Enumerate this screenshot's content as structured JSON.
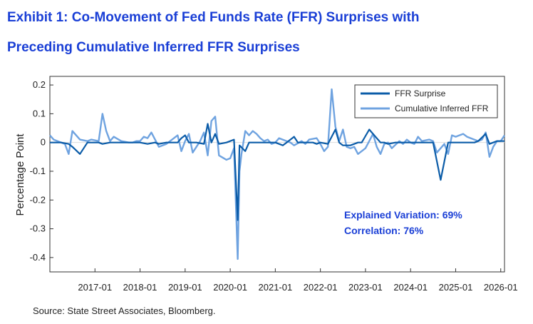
{
  "title_line1": "Exhibit 1: Co-Movement of Fed Funds Rate (FFR) Surprises with",
  "title_line2": "Preceding Cumulative Inferred FFR Surprises",
  "source": "Source: State Street Associates, Bloomberg.",
  "annotation": {
    "line1": "Explained Variation: 69%",
    "line2": "Correlation: 76%",
    "color": "#1a3fd6"
  },
  "chart_data": {
    "type": "line",
    "xlabel": "",
    "ylabel": "Percentage Point",
    "ylim": [
      -0.45,
      0.23
    ],
    "xlim": [
      "2016-01",
      "2026-02"
    ],
    "yticks": [
      "0.2",
      "0.1",
      "0",
      "-0.1",
      "-0.2",
      "-0.3",
      "-0.4"
    ],
    "xticks": [
      "2017-01",
      "2018-01",
      "2019-01",
      "2020-01",
      "2021-01",
      "2022-01",
      "2023-01",
      "2024-01",
      "2025-01",
      "2026-01"
    ],
    "grid": false,
    "legend_position": "top-right",
    "series": [
      {
        "name": "FFR Surprise",
        "color": "#0b5ca8",
        "points": [
          [
            "2016-01",
            0
          ],
          [
            "2016-04",
            0
          ],
          [
            "2016-06",
            -0.005
          ],
          [
            "2016-07",
            -0.015
          ],
          [
            "2016-09",
            -0.04
          ],
          [
            "2016-11",
            0
          ],
          [
            "2016-12",
            0
          ],
          [
            "2017-02",
            0
          ],
          [
            "2017-03",
            -0.005
          ],
          [
            "2017-05",
            0
          ],
          [
            "2017-06",
            0
          ],
          [
            "2017-09",
            0
          ],
          [
            "2017-10",
            0
          ],
          [
            "2017-12",
            0
          ],
          [
            "2018-01",
            0
          ],
          [
            "2018-03",
            -0.005
          ],
          [
            "2018-05",
            0
          ],
          [
            "2018-06",
            -0.005
          ],
          [
            "2018-08",
            0
          ],
          [
            "2018-09",
            0
          ],
          [
            "2018-11",
            0
          ],
          [
            "2018-12",
            0.015
          ],
          [
            "2019-01",
            0.025
          ],
          [
            "2019-02",
            0
          ],
          [
            "2019-03",
            0
          ],
          [
            "2019-04",
            0
          ],
          [
            "2019-06",
            -0.005
          ],
          [
            "2019-07",
            0.065
          ],
          [
            "2019-08",
            0
          ],
          [
            "2019-09",
            0.03
          ],
          [
            "2019-10",
            -0.005
          ],
          [
            "2019-12",
            0
          ],
          [
            "2020-01",
            0.005
          ],
          [
            "2020-02",
            0.01
          ],
          [
            "2020-03",
            -0.27
          ],
          [
            "2020-03-15",
            -0.01
          ],
          [
            "2020-05",
            -0.03
          ],
          [
            "2020-06",
            0
          ],
          [
            "2020-07",
            0
          ],
          [
            "2020-09",
            0
          ],
          [
            "2020-11",
            0
          ],
          [
            "2020-12",
            0
          ],
          [
            "2021-01",
            0
          ],
          [
            "2021-03",
            -0.01
          ],
          [
            "2021-04",
            0
          ],
          [
            "2021-06",
            0.02
          ],
          [
            "2021-07",
            0
          ],
          [
            "2021-09",
            0
          ],
          [
            "2021-11",
            0
          ],
          [
            "2021-12",
            -0.005
          ],
          [
            "2022-01",
            0
          ],
          [
            "2022-03",
            -0.005
          ],
          [
            "2022-05",
            0.045
          ],
          [
            "2022-06",
            0
          ],
          [
            "2022-07",
            -0.01
          ],
          [
            "2022-09",
            -0.01
          ],
          [
            "2022-11",
            0
          ],
          [
            "2022-12",
            0
          ],
          [
            "2023-02",
            0.045
          ],
          [
            "2023-03",
            0.03
          ],
          [
            "2023-05",
            0
          ],
          [
            "2023-06",
            0
          ],
          [
            "2023-07",
            -0.005
          ],
          [
            "2023-09",
            0
          ],
          [
            "2023-11",
            0
          ],
          [
            "2023-12",
            0
          ],
          [
            "2024-01",
            0
          ],
          [
            "2024-03",
            0
          ],
          [
            "2024-05",
            0
          ],
          [
            "2024-06",
            0
          ],
          [
            "2024-07",
            0
          ],
          [
            "2024-09",
            -0.13
          ],
          [
            "2024-11",
            0
          ],
          [
            "2024-12",
            0
          ],
          [
            "2025-01",
            0
          ],
          [
            "2025-03",
            0
          ],
          [
            "2025-05",
            0
          ],
          [
            "2025-06",
            0
          ],
          [
            "2025-07",
            0.005
          ],
          [
            "2025-09",
            0.03
          ],
          [
            "2025-10",
            -0.005
          ],
          [
            "2025-12",
            0.005
          ],
          [
            "2026-02",
            0.005
          ]
        ]
      },
      {
        "name": "Cumulative Inferred FFR",
        "color": "#6fa3e0",
        "points": [
          [
            "2016-01",
            0.025
          ],
          [
            "2016-02",
            0.01
          ],
          [
            "2016-04",
            0
          ],
          [
            "2016-05",
            -0.005
          ],
          [
            "2016-06",
            -0.04
          ],
          [
            "2016-07",
            0.04
          ],
          [
            "2016-08",
            0.025
          ],
          [
            "2016-09",
            0.01
          ],
          [
            "2016-11",
            0.005
          ],
          [
            "2016-12",
            0.01
          ],
          [
            "2017-02",
            0.005
          ],
          [
            "2017-03",
            0.1
          ],
          [
            "2017-04",
            0.04
          ],
          [
            "2017-05",
            0.005
          ],
          [
            "2017-06",
            0.02
          ],
          [
            "2017-08",
            0.005
          ],
          [
            "2017-10",
            0
          ],
          [
            "2017-11",
            0
          ],
          [
            "2017-12",
            0.005
          ],
          [
            "2018-01",
            0.005
          ],
          [
            "2018-02",
            0.02
          ],
          [
            "2018-03",
            0.015
          ],
          [
            "2018-04",
            0.035
          ],
          [
            "2018-06",
            -0.015
          ],
          [
            "2018-08",
            -0.005
          ],
          [
            "2018-09",
            0.005
          ],
          [
            "2018-11",
            0.025
          ],
          [
            "2018-12",
            -0.03
          ],
          [
            "2019-01",
            0.005
          ],
          [
            "2019-02",
            0.03
          ],
          [
            "2019-03",
            -0.035
          ],
          [
            "2019-05",
            0.005
          ],
          [
            "2019-06",
            0.035
          ],
          [
            "2019-07",
            -0.045
          ],
          [
            "2019-08",
            0.075
          ],
          [
            "2019-09",
            0.09
          ],
          [
            "2019-10",
            -0.045
          ],
          [
            "2019-12",
            -0.06
          ],
          [
            "2020-01",
            -0.055
          ],
          [
            "2020-02",
            -0.02
          ],
          [
            "2020-03",
            -0.405
          ],
          [
            "2020-03-15",
            -0.1
          ],
          [
            "2020-04",
            -0.04
          ],
          [
            "2020-05",
            0.04
          ],
          [
            "2020-06",
            0.025
          ],
          [
            "2020-07",
            0.04
          ],
          [
            "2020-08",
            0.03
          ],
          [
            "2020-09",
            0.015
          ],
          [
            "2020-10",
            0.005
          ],
          [
            "2020-11",
            0.01
          ],
          [
            "2020-12",
            -0.005
          ],
          [
            "2021-01",
            0
          ],
          [
            "2021-02",
            0.015
          ],
          [
            "2021-04",
            0.005
          ],
          [
            "2021-05",
            0
          ],
          [
            "2021-06",
            -0.01
          ],
          [
            "2021-08",
            0.005
          ],
          [
            "2021-09",
            -0.005
          ],
          [
            "2021-10",
            0.01
          ],
          [
            "2021-12",
            0.015
          ],
          [
            "2022-01",
            -0.005
          ],
          [
            "2022-02",
            -0.03
          ],
          [
            "2022-03",
            -0.015
          ],
          [
            "2022-04",
            0.185
          ],
          [
            "2022-05",
            0.055
          ],
          [
            "2022-06",
            0.005
          ],
          [
            "2022-07",
            0.045
          ],
          [
            "2022-08",
            -0.015
          ],
          [
            "2022-09",
            -0.02
          ],
          [
            "2022-10",
            -0.015
          ],
          [
            "2022-11",
            -0.04
          ],
          [
            "2022-12",
            -0.03
          ],
          [
            "2023-01",
            -0.02
          ],
          [
            "2023-02",
            0.005
          ],
          [
            "2023-03",
            0.03
          ],
          [
            "2023-04",
            -0.015
          ],
          [
            "2023-05",
            -0.04
          ],
          [
            "2023-06",
            -0.005
          ],
          [
            "2023-07",
            0
          ],
          [
            "2023-08",
            -0.02
          ],
          [
            "2023-10",
            0.005
          ],
          [
            "2023-11",
            -0.005
          ],
          [
            "2023-12",
            0.01
          ],
          [
            "2024-01",
            0
          ],
          [
            "2024-02",
            -0.005
          ],
          [
            "2024-03",
            0.02
          ],
          [
            "2024-04",
            0.005
          ],
          [
            "2024-06",
            0.01
          ],
          [
            "2024-07",
            0.005
          ],
          [
            "2024-08",
            -0.035
          ],
          [
            "2024-09",
            -0.02
          ],
          [
            "2024-10",
            -0.005
          ],
          [
            "2024-11",
            -0.04
          ],
          [
            "2024-12",
            0.025
          ],
          [
            "2025-01",
            0.02
          ],
          [
            "2025-02",
            0.025
          ],
          [
            "2025-03",
            0.03
          ],
          [
            "2025-04",
            0.02
          ],
          [
            "2025-05",
            0.015
          ],
          [
            "2025-07",
            0.005
          ],
          [
            "2025-08",
            0.01
          ],
          [
            "2025-09",
            0.035
          ],
          [
            "2025-10",
            -0.05
          ],
          [
            "2025-11",
            -0.015
          ],
          [
            "2025-12",
            0.005
          ],
          [
            "2026-01",
            0.005
          ],
          [
            "2026-02",
            0.025
          ]
        ]
      }
    ]
  }
}
